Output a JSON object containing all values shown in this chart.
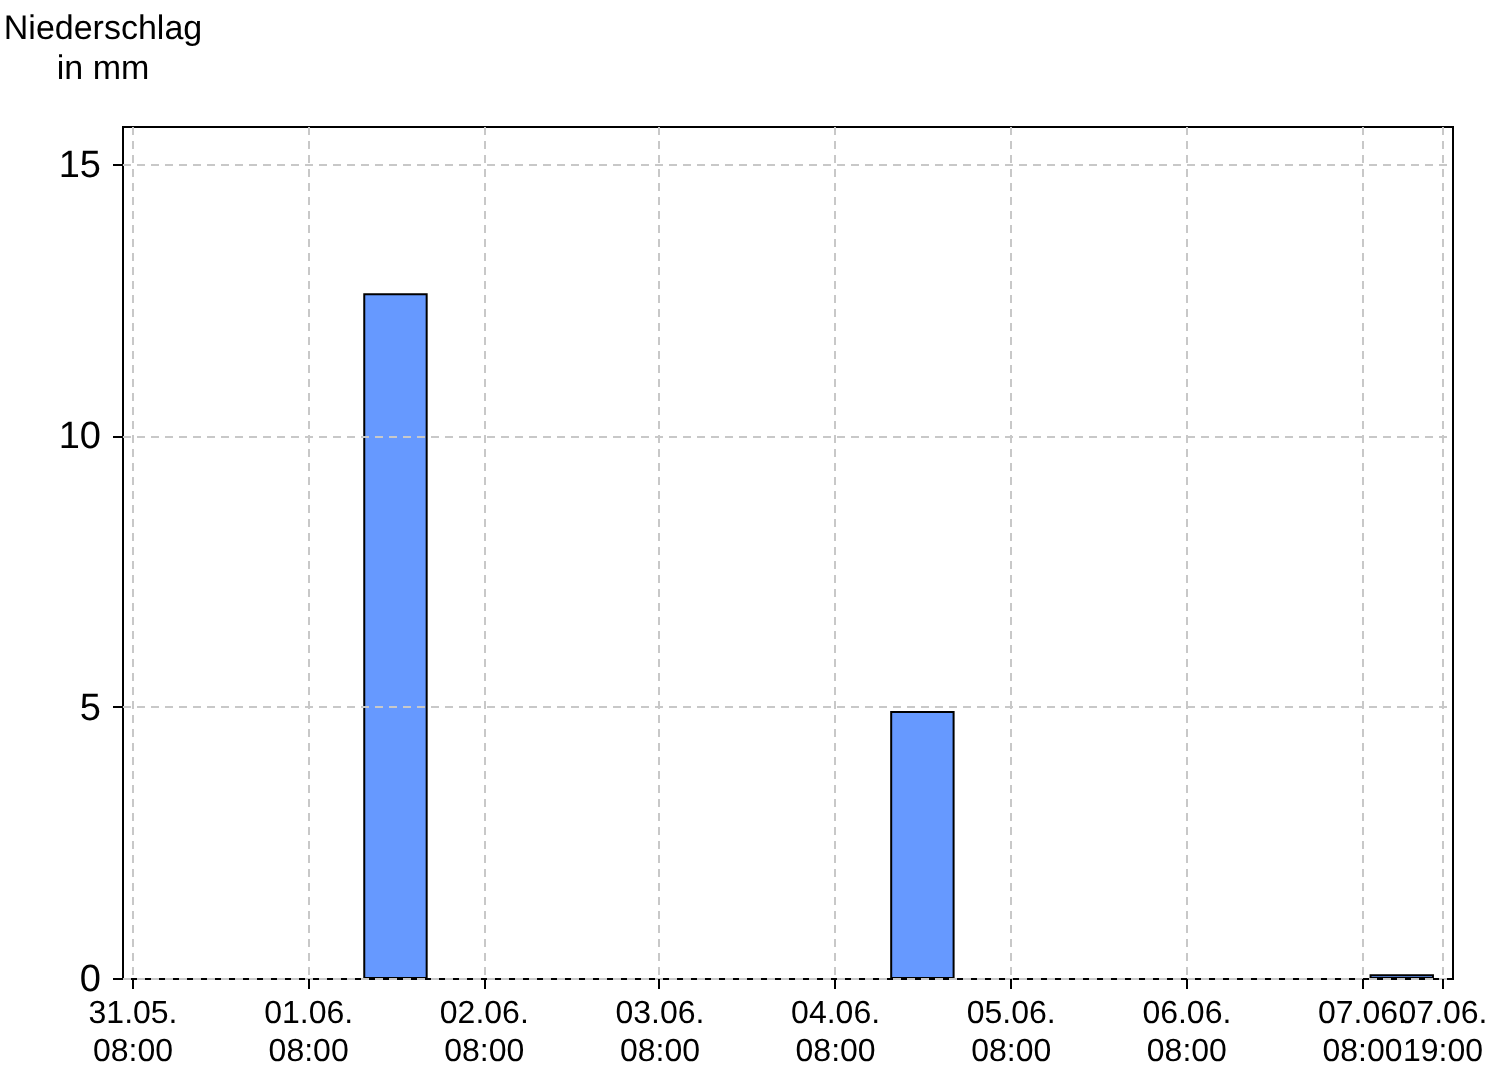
{
  "chart_data": {
    "type": "bar",
    "ylabel": "Niederschlag in mm",
    "x": [
      "--06-01T20:00",
      "--06-04T20:00",
      "--06-07T13:30"
    ],
    "values": [
      12.6,
      4.9,
      0.05
    ],
    "color": "#6699ff",
    "xlim": [
      "--05-31T08:00",
      "--06-07T19:00"
    ],
    "xticks": [
      {
        "value": "--05-31T08:00",
        "label": "31.05. 08:00"
      },
      {
        "value": "--06-01T08:00",
        "label": "01.06. 08:00"
      },
      {
        "value": "--06-02T08:00",
        "label": "02.06. 08:00"
      },
      {
        "value": "--06-03T08:00",
        "label": "03.06. 08:00"
      },
      {
        "value": "--06-04T08:00",
        "label": "04.06. 08:00"
      },
      {
        "value": "--06-05T08:00",
        "label": "05.06. 08:00"
      },
      {
        "value": "--06-06T08:00",
        "label": "06.06. 08:00"
      },
      {
        "value": "--06-07T08:00",
        "label": "07.06. 08:00"
      },
      {
        "value": "--06-07T19:00",
        "label": "07.06. 19:00"
      }
    ],
    "ylim": [
      0,
      15.7
    ],
    "yticks": [
      0,
      5,
      10,
      15
    ],
    "grid": true
  }
}
